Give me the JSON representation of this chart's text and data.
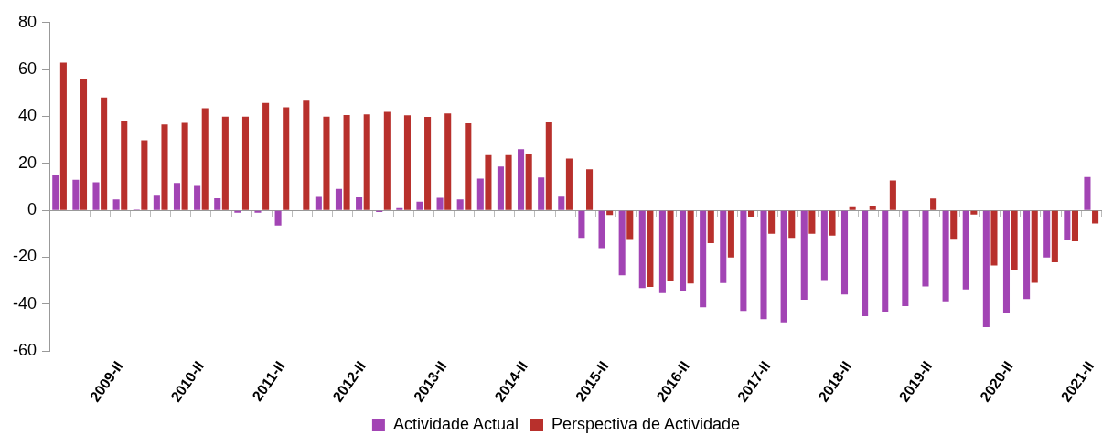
{
  "chart_data": {
    "type": "bar",
    "categories": [
      null,
      null,
      null,
      "2009-II",
      null,
      null,
      null,
      "2010-II",
      null,
      null,
      null,
      "2011-II",
      null,
      null,
      null,
      "2012-II",
      null,
      null,
      null,
      "2013-II",
      null,
      null,
      null,
      "2014-II",
      null,
      null,
      null,
      "2015-II",
      null,
      null,
      null,
      "2016-II",
      null,
      null,
      null,
      "2017-II",
      null,
      null,
      null,
      "2018-II",
      null,
      null,
      null,
      "2019-II",
      null,
      null,
      null,
      "2020-II",
      null,
      null,
      null,
      "2021-II"
    ],
    "series": [
      {
        "name": "Actividade Actual",
        "color": "#a244b4",
        "values": [
          15.1,
          13.0,
          11.9,
          4.6,
          0.4,
          6.6,
          11.7,
          10.4,
          5.1,
          -1.0,
          -1.0,
          -6.5,
          0.2,
          5.7,
          9.1,
          5.5,
          -0.7,
          0.9,
          3.7,
          5.3,
          4.6,
          13.5,
          18.7,
          26.1,
          14.0,
          5.8,
          -12.1,
          -16.1,
          -27.7,
          -33.1,
          -35.3,
          -34.3,
          -41.3,
          -31.0,
          -42.9,
          -46.4,
          -47.8,
          -38.1,
          -29.7,
          -35.9,
          -45.1,
          -43.2,
          -40.8,
          -32.5,
          -38.8,
          -33.7,
          -49.8,
          -43.7,
          -37.8,
          -20.1,
          -12.8,
          14.2
        ]
      },
      {
        "name": "Perspectiva de Actividade",
        "color": "#b8302c",
        "values": [
          63.0,
          56.1,
          48.1,
          38.2,
          29.9,
          36.6,
          37.3,
          43.5,
          39.9,
          39.9,
          45.7,
          43.9,
          47.1,
          39.9,
          40.6,
          40.9,
          41.9,
          40.5,
          39.8,
          41.3,
          37.1,
          23.5,
          23.5,
          23.8,
          37.8,
          22.1,
          17.5,
          -2.0,
          -12.6,
          -32.7,
          -30.1,
          -31.2,
          -14.0,
          -20.1,
          -3.0,
          -10.0,
          -12.1,
          -10.0,
          -10.7,
          1.7,
          2.0,
          12.7,
          null,
          5.0,
          -12.5,
          -1.8,
          -23.5,
          -25.4,
          -30.9,
          -22.1,
          -13.2,
          -5.6
        ]
      }
    ],
    "ylim": [
      -60,
      80
    ],
    "yticks": [
      -60,
      -40,
      -20,
      0,
      20,
      40,
      60,
      80
    ],
    "legend": "bottom"
  }
}
